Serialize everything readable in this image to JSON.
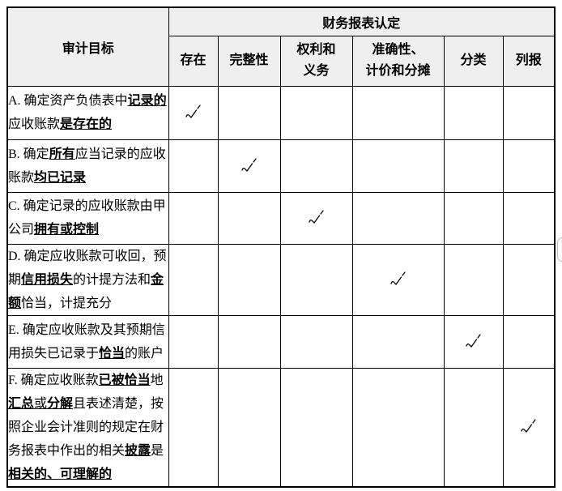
{
  "table": {
    "header": {
      "audit_objective": "审计目标",
      "assertions_title": "财务报表认定",
      "assertion_columns": [
        "存在",
        "完整性",
        "权利和\n义务",
        "准确性、\n计价和分摊",
        "分类",
        "列报"
      ]
    },
    "rows": [
      {
        "segments": [
          [
            "A. 确定资产负债表中",
            ""
          ],
          [
            "记录的",
            "bu"
          ],
          [
            "应收账款",
            ""
          ],
          [
            "是存在的",
            "bu"
          ]
        ],
        "check_col": 0
      },
      {
        "segments": [
          [
            "B. 确定",
            ""
          ],
          [
            "所有",
            "bu"
          ],
          [
            "应当记录的应收账款",
            ""
          ],
          [
            "均已记录",
            "bu"
          ]
        ],
        "check_col": 1
      },
      {
        "segments": [
          [
            "C. 确定记录的应收账款由甲公司",
            ""
          ],
          [
            "拥有或控制",
            "bu"
          ]
        ],
        "check_col": 2
      },
      {
        "segments": [
          [
            "D. 确定应收账款可收回，预期",
            ""
          ],
          [
            "信用损失",
            "bu"
          ],
          [
            "的计提方法和",
            ""
          ],
          [
            "金额",
            "bu"
          ],
          [
            "恰当，计提充分",
            ""
          ]
        ],
        "check_col": 3
      },
      {
        "segments": [
          [
            "E. 确定应收账款及其预期信用损失已记录于",
            ""
          ],
          [
            "恰当",
            "bu"
          ],
          [
            "的账户",
            ""
          ]
        ],
        "check_col": 4
      },
      {
        "segments": [
          [
            "F. 确定应收账款",
            ""
          ],
          [
            "已被恰当",
            "bu"
          ],
          [
            "地",
            ""
          ],
          [
            "汇总",
            "bu"
          ],
          [
            "或",
            "u"
          ],
          [
            "分解",
            "bu"
          ],
          [
            "且表述清楚，按照企业会计准则的规定在财务报表中作出的相关",
            ""
          ],
          [
            "披露",
            "bu"
          ],
          [
            "是",
            ""
          ],
          [
            "相关的、可理解的",
            "bu"
          ]
        ],
        "check_col": 5
      }
    ],
    "checkmark_icon": "checkmark"
  },
  "colors": {
    "header_bg": "#efefef",
    "border": "#000000",
    "page_bg": "#ffffff",
    "text": "#000000"
  }
}
